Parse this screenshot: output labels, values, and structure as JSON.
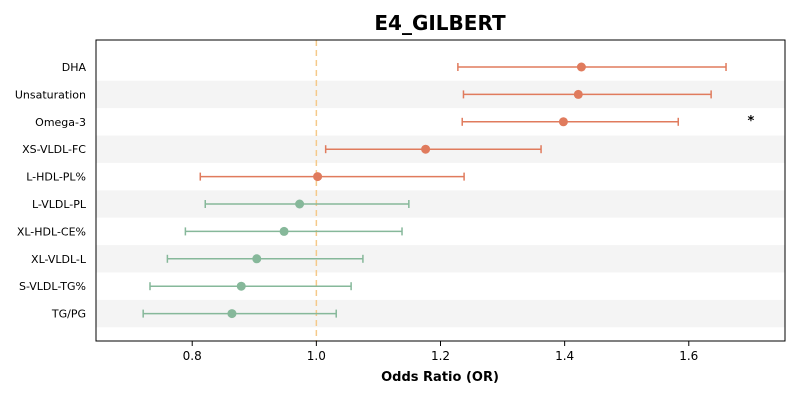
{
  "chart_data": {
    "type": "forest",
    "title": "E4_GILBERT",
    "xlabel": "Odds Ratio (OR)",
    "ylabel": "",
    "xlim": [
      0.645,
      1.755
    ],
    "x_ticks": [
      0.8,
      1.0,
      1.2,
      1.4,
      1.6
    ],
    "x_tick_labels": [
      "0.8",
      "1.0",
      "1.2",
      "1.4",
      "1.6"
    ],
    "reference_line": 1.0,
    "grid": false,
    "row_banding": true,
    "colors": {
      "positive": "#e07b5d",
      "negative": "#86b89a",
      "reference": "#f5c98a",
      "band": "#f4f4f4"
    },
    "rows": [
      {
        "label": "DHA",
        "or": 1.427,
        "ci_low": 1.228,
        "ci_high": 1.66,
        "group": "positive",
        "annotation": ""
      },
      {
        "label": "Unsaturation",
        "or": 1.422,
        "ci_low": 1.237,
        "ci_high": 1.636,
        "group": "positive",
        "annotation": ""
      },
      {
        "label": "Omega-3",
        "or": 1.398,
        "ci_low": 1.235,
        "ci_high": 1.583,
        "group": "positive",
        "annotation": "*"
      },
      {
        "label": "XS-VLDL-FC",
        "or": 1.176,
        "ci_low": 1.015,
        "ci_high": 1.362,
        "group": "positive",
        "annotation": ""
      },
      {
        "label": "L-HDL-PL%",
        "or": 1.002,
        "ci_low": 0.813,
        "ci_high": 1.238,
        "group": "positive",
        "annotation": ""
      },
      {
        "label": "L-VLDL-PL",
        "or": 0.973,
        "ci_low": 0.821,
        "ci_high": 1.149,
        "group": "negative",
        "annotation": ""
      },
      {
        "label": "XL-HDL-CE%",
        "or": 0.948,
        "ci_low": 0.789,
        "ci_high": 1.138,
        "group": "negative",
        "annotation": ""
      },
      {
        "label": "XL-VLDL-L",
        "or": 0.904,
        "ci_low": 0.76,
        "ci_high": 1.075,
        "group": "negative",
        "annotation": ""
      },
      {
        "label": "S-VLDL-TG%",
        "or": 0.879,
        "ci_low": 0.732,
        "ci_high": 1.056,
        "group": "negative",
        "annotation": ""
      },
      {
        "label": "TG/PG",
        "or": 0.864,
        "ci_low": 0.721,
        "ci_high": 1.032,
        "group": "negative",
        "annotation": ""
      }
    ],
    "annotation_x": 1.7
  }
}
